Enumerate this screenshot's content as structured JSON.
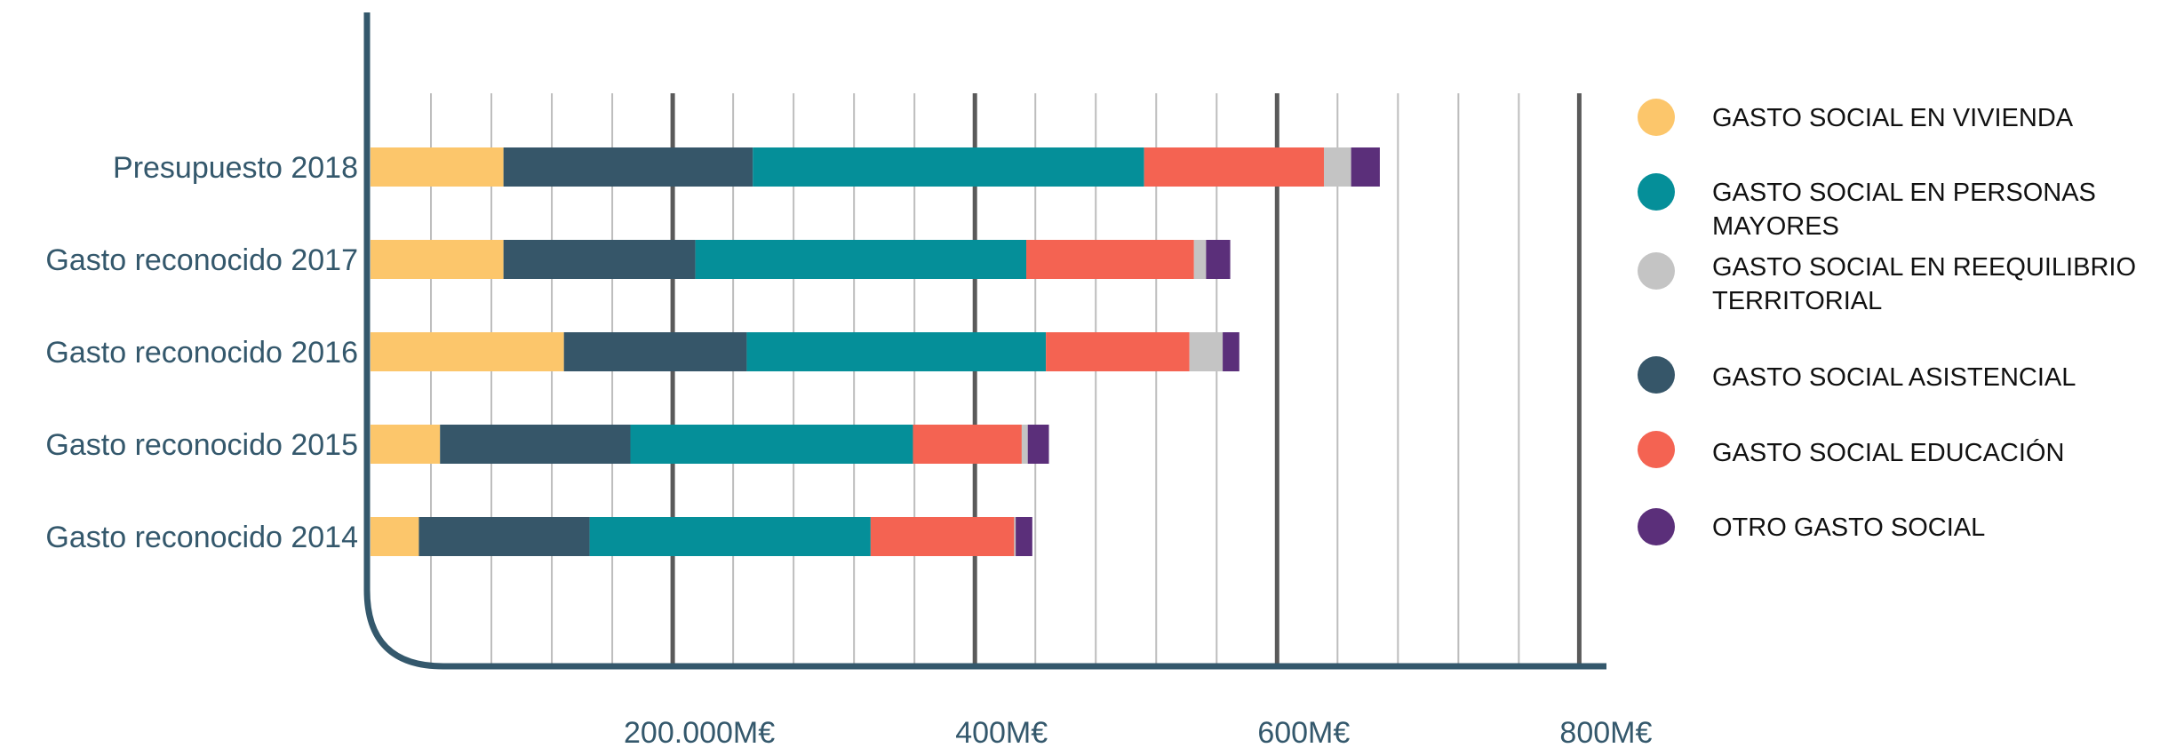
{
  "chart_data": {
    "type": "bar",
    "orientation": "horizontal",
    "stacked": true,
    "categories": [
      "Presupuesto 2018",
      "Gasto reconocido 2017",
      "Gasto reconocido 2016",
      "Gasto reconocido 2015",
      "Gasto reconocido 2014"
    ],
    "series": [
      {
        "key": "vivienda",
        "color": "#fcc66b",
        "values": [
          88,
          88,
          128,
          46,
          32
        ]
      },
      {
        "key": "asistencial",
        "color": "#365669",
        "values": [
          165,
          127,
          121,
          126,
          113
        ]
      },
      {
        "key": "mayores",
        "color": "#058f99",
        "values": [
          259,
          219,
          198,
          187,
          186
        ]
      },
      {
        "key": "educacion",
        "color": "#f46352",
        "values": [
          119,
          111,
          95,
          72,
          95
        ]
      },
      {
        "key": "reequilibrio",
        "color": "#c4c4c4",
        "values": [
          18,
          8,
          22,
          4,
          1
        ]
      },
      {
        "key": "otro",
        "color": "#5b2f7a",
        "values": [
          19,
          16,
          11,
          14,
          11
        ]
      }
    ],
    "xlim": [
      0,
      800
    ],
    "xticks": [
      {
        "value": 200,
        "label": "200.000M€"
      },
      {
        "value": 400,
        "label": "400M€"
      },
      {
        "value": 600,
        "label": "600M€"
      },
      {
        "value": 800,
        "label": "800M€"
      }
    ],
    "minor_grid_step": 40,
    "grid": true,
    "legend_position": "right",
    "legend": [
      {
        "color": "#fcc66b",
        "lines": [
          "GASTO SOCIAL EN VIVIENDA"
        ]
      },
      {
        "color": "#058f99",
        "lines": [
          "GASTO SOCIAL EN PERSONAS",
          "MAYORES"
        ]
      },
      {
        "color": "#c4c4c4",
        "lines": [
          "GASTO SOCIAL EN REEQUILIBRIO",
          "TERRITORIAL"
        ]
      },
      {
        "color": "#365669",
        "lines": [
          "GASTO SOCIAL ASISTENCIAL"
        ]
      },
      {
        "color": "#f46352",
        "lines": [
          "GASTO SOCIAL EDUCACIÓN"
        ]
      },
      {
        "color": "#5b2f7a",
        "lines": [
          "OTRO GASTO SOCIAL"
        ]
      }
    ]
  }
}
